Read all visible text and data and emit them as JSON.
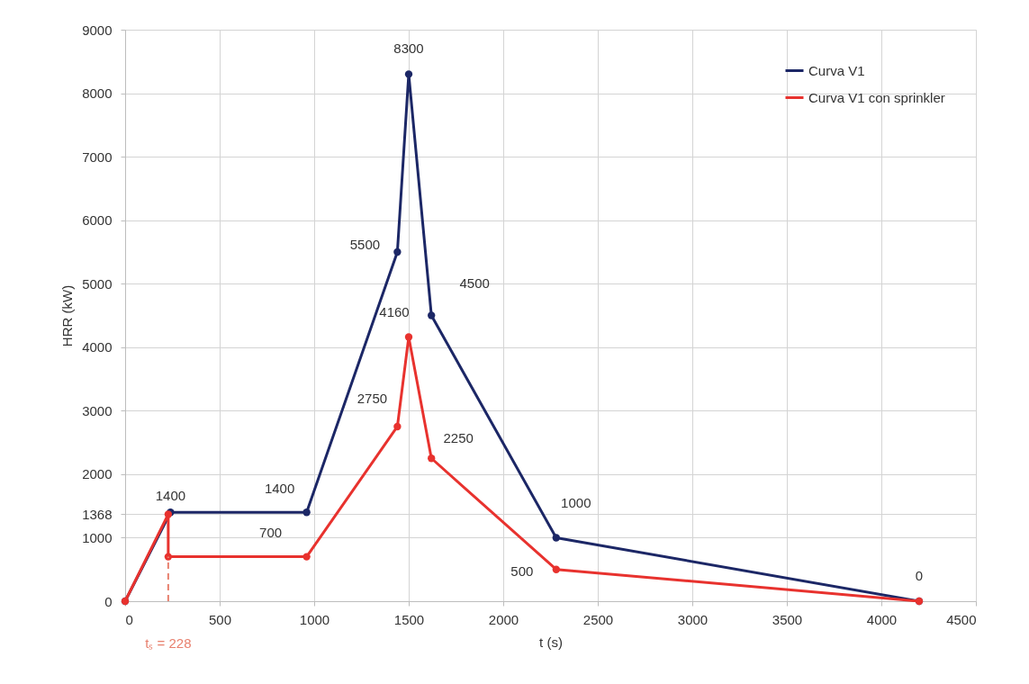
{
  "chart_data": {
    "type": "line",
    "xlabel": "t (s)",
    "ylabel": "HRR (kW)",
    "xlim": [
      0,
      4500
    ],
    "xticks": [
      0,
      500,
      1000,
      1500,
      2000,
      2500,
      3000,
      3500,
      4000,
      4500
    ],
    "ylim": [
      0,
      9000
    ],
    "yticks": [
      0,
      1000,
      1368,
      2000,
      3000,
      4000,
      5000,
      6000,
      7000,
      8000,
      9000
    ],
    "grid": true,
    "legend": "top right",
    "marker": "circle",
    "line_style": "solid",
    "series": [
      {
        "name": "Curva V1",
        "color": "#1c2766",
        "x": [
          0,
          240,
          960,
          1440,
          1500,
          1620,
          2280,
          4200
        ],
        "values": [
          0,
          1400,
          1400,
          5500,
          8300,
          4500,
          1000,
          0
        ],
        "value_labels": [
          null,
          "1400",
          "1400",
          "5500",
          "8300",
          "4500",
          "1000",
          "0"
        ]
      },
      {
        "name": "Curva V1 con sprinkler",
        "color": "#e8322e",
        "x": [
          0,
          228,
          228,
          960,
          1440,
          1500,
          1620,
          2280,
          4200
        ],
        "values": [
          0,
          1368,
          700,
          700,
          2750,
          4160,
          2250,
          500,
          0
        ],
        "value_labels": [
          null,
          null,
          null,
          "700",
          "2750",
          "4160",
          "2250",
          "500",
          null
        ]
      },
      {
        "type": "line",
        "color": "#e8806e",
        "x": [
          228,
          228
        ],
        "values": [
          0,
          700
        ],
        "line_style": "dashed",
        "marker": "none"
      }
    ],
    "annotations": [
      {
        "text": "tₛ = 228",
        "x": 228,
        "y": 0
      }
    ]
  }
}
